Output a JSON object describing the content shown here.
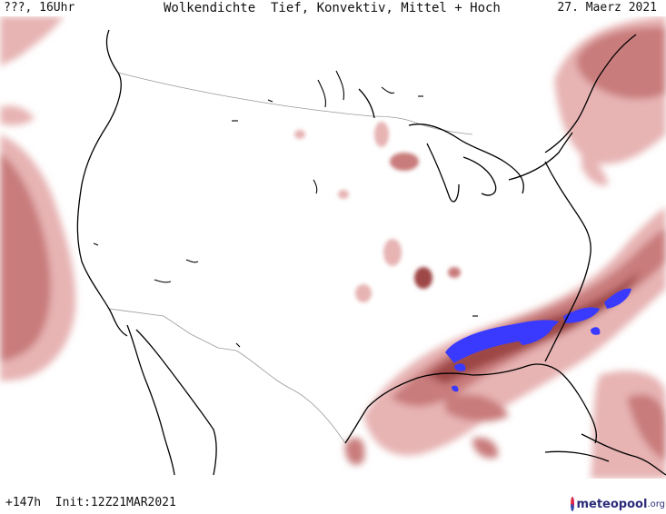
{
  "header": {
    "left": "???, 16Uhr",
    "title": "Wolkendichte  Tief, Konvektiv, Mittel + Hoch",
    "date": "27. Maerz 2021"
  },
  "footer": {
    "run": "+147h  Init:12Z21MAR2021"
  },
  "logo": {
    "brand": "meteopool",
    "tld": ".org"
  },
  "colors": {
    "background": "#ffffff",
    "cloud_light": "#e7b3b3",
    "cloud_medium": "#c97b7b",
    "cloud_dense": "#9e4747",
    "convective": "#3a3aff",
    "coast": "#000000",
    "border": "#9a9a9a"
  }
}
